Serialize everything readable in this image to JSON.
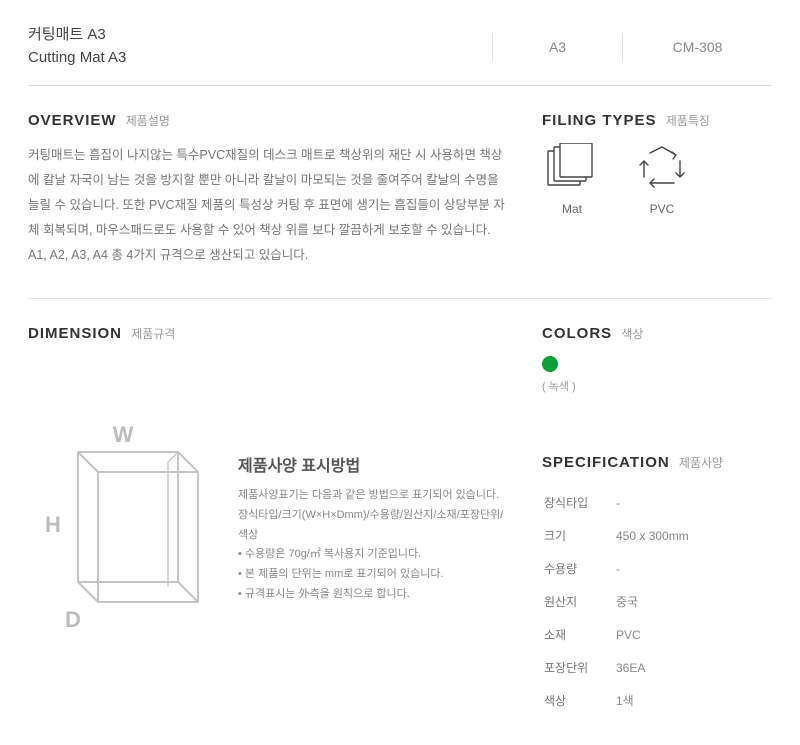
{
  "header": {
    "title_kr": "커팅매트 A3",
    "title_en": "Cutting Mat A3",
    "size_code": "A3",
    "model": "CM-308"
  },
  "overview": {
    "heading": "OVERVIEW",
    "sub": "제품설명",
    "text": "커팅매트는 흠집이 나지않는 특수PVC재질의 데스크 매트로 책상위의 재단 시 사용하면 책상에 칼날 자국이 남는 것을 방지할 뿐만 아니라 칼날이 마모되는 것을 줄여주어 칼날의 수명을 늘릴 수 있습니다. 또한 PVC재질 제품의 특성상 커팅 후 표면에 생기는 흠집들이 상당부분 자체 회복되며, 마우스패드로도 사용할 수 있어 책상 위를 보다 깔끔하게 보호할 수 있습니다. A1, A2, A3, A4 총 4가지 규격으로 생산되고 있습니다."
  },
  "filing": {
    "heading": "FILING TYPES",
    "sub": "제품특징",
    "items": [
      {
        "name": "mat-icon",
        "label": "Mat"
      },
      {
        "name": "pvc-icon",
        "label": "PVC"
      }
    ]
  },
  "dimension": {
    "heading": "DIMENSION",
    "sub": "제품규격",
    "labels": {
      "w": "W",
      "h": "H",
      "d": "D"
    },
    "spec_method": {
      "title": "제품사양 표시방법",
      "desc": "제품사양표기는 다음과 같은 방법으로 표기되어 있습니다.\n장식타입/크기(W×H×Dmm)/수용량/원산지/소재/포장단위/색상",
      "bullets": [
        "수용량은 70g/㎡ 복사용지 기준입니다.",
        "본 제품의 단위는 mm로 표기되어 있습니다.",
        "규격표시는 外측을 원칙으로 합니다."
      ]
    }
  },
  "colors": {
    "heading": "COLORS",
    "sub": "색상",
    "swatches": [
      {
        "hex": "#0f9d3a",
        "label": "( 녹색 )"
      }
    ]
  },
  "specification": {
    "heading": "SPECIFICATION",
    "sub": "제품사양",
    "rows": [
      {
        "key": "장식타입",
        "value": "-"
      },
      {
        "key": "크기",
        "value": "450 x 300mm"
      },
      {
        "key": "수용량",
        "value": "-"
      },
      {
        "key": "원산지",
        "value": "중국"
      },
      {
        "key": "소재",
        "value": "PVC"
      },
      {
        "key": "포장단위",
        "value": "36EA"
      },
      {
        "key": "색상",
        "value": "1색"
      }
    ]
  },
  "style": {
    "text_color": "#777777",
    "heading_color": "#333333",
    "border_color": "#d9d9d9",
    "illustration_stroke": "#bfbfbf",
    "illustration_label": "#bdbdbd"
  }
}
